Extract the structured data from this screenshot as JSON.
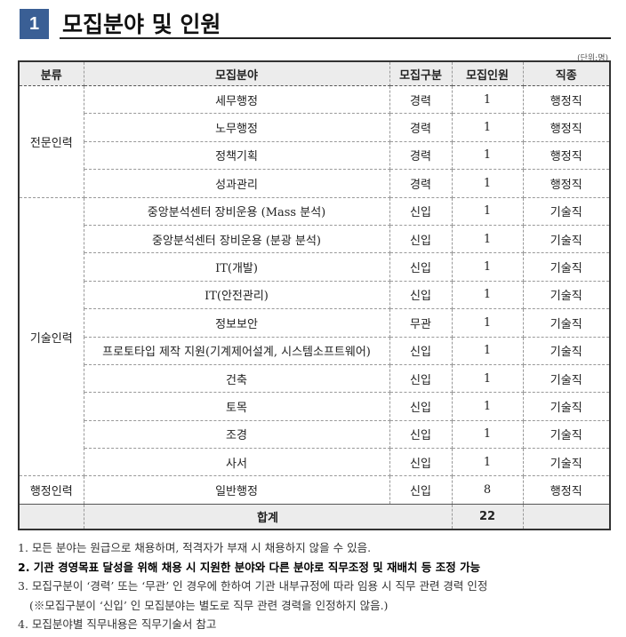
{
  "section": {
    "number": "1",
    "title": "모집분야 및 인원",
    "unit": "(단위:명)"
  },
  "headers": [
    "분류",
    "모집분야",
    "모집구분",
    "모집인원",
    "직종"
  ],
  "groups": [
    {
      "name": "전문인력",
      "rows": [
        [
          "세무행정",
          "경력",
          "1",
          "행정직"
        ],
        [
          "노무행정",
          "경력",
          "1",
          "행정직"
        ],
        [
          "정책기획",
          "경력",
          "1",
          "행정직"
        ],
        [
          "성과관리",
          "경력",
          "1",
          "행정직"
        ]
      ]
    },
    {
      "name": "기술인력",
      "rows": [
        [
          "중앙분석센터 장비운용 (Mass 분석)",
          "신입",
          "1",
          "기술직"
        ],
        [
          "중앙분석센터 장비운용 (분광 분석)",
          "신입",
          "1",
          "기술직"
        ],
        [
          "IT(개발)",
          "신입",
          "1",
          "기술직"
        ],
        [
          "IT(안전관리)",
          "신입",
          "1",
          "기술직"
        ],
        [
          "정보보안",
          "무관",
          "1",
          "기술직"
        ],
        [
          "프로토타입 제작 지원(기계제어설계, 시스템소프트웨어)",
          "신입",
          "1",
          "기술직"
        ],
        [
          "건축",
          "신입",
          "1",
          "기술직"
        ],
        [
          "토목",
          "신입",
          "1",
          "기술직"
        ],
        [
          "조경",
          "신입",
          "1",
          "기술직"
        ],
        [
          "사서",
          "신입",
          "1",
          "기술직"
        ]
      ]
    },
    {
      "name": "행정인력",
      "rows": [
        [
          "일반행정",
          "신입",
          "8",
          "행정직"
        ]
      ]
    }
  ],
  "total": {
    "label": "합계",
    "value": "22"
  },
  "notes": [
    "1. 모든 분야는 원급으로 채용하며, 적격자가 부재 시 채용하지 않을 수 있음.",
    "2. 기관 경영목표 달성을 위해 채용 시 지원한 분야와 다른 분야로 직무조정 및 재배치 등 조정 가능",
    "3. 모집구분이 ‘경력’ 또는 ‘무관’ 인 경우에 한하여 기관 내부규정에 따라 임용 시 직무 관련 경력 인정",
    "(※모집구분이 ‘신입’ 인 모집분야는 별도로 직무 관련 경력을 인정하지 않음.)",
    "4. 모집분야별 직무내용은 직무기술서 참고"
  ],
  "colors": {
    "accent": "#3a5f95",
    "header_bg": "#ececec"
  }
}
